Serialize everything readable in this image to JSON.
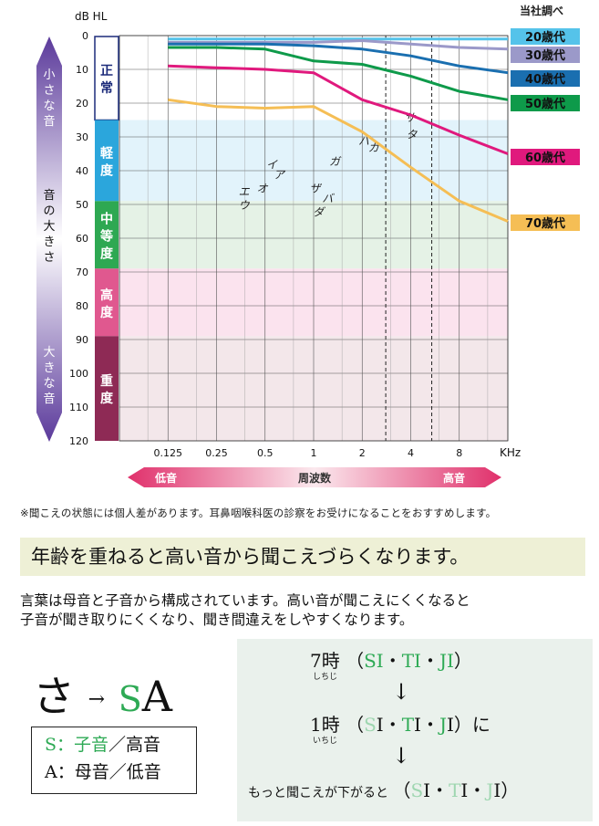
{
  "chart_data": {
    "type": "line",
    "title": "",
    "source_note": "当社調べ",
    "y_unit_label": "dB HL",
    "x_unit_label": "KHz",
    "x_ticks": [
      "0.125",
      "0.25",
      "0.5",
      "1",
      "2",
      "4",
      "8"
    ],
    "y_ticks": [
      "0",
      "10",
      "20",
      "30",
      "40",
      "50",
      "60",
      "70",
      "80",
      "90",
      "100",
      "110",
      "120"
    ],
    "ylim": [
      0,
      120
    ],
    "y_inverted": true,
    "x_scale": "log2",
    "grid": true,
    "series": [
      {
        "name": "20歳代",
        "color": "#55c3ea",
        "x": [
          0.125,
          0.25,
          0.5,
          1,
          2,
          4,
          8,
          16
        ],
        "y": [
          1,
          1,
          1,
          1,
          1,
          1,
          1,
          1
        ]
      },
      {
        "name": "30歳代",
        "color": "#9b99c9",
        "x": [
          0.125,
          0.25,
          0.5,
          1,
          2,
          4,
          8,
          16
        ],
        "y": [
          2,
          2,
          2,
          2,
          1.5,
          2.5,
          3.5,
          4
        ]
      },
      {
        "name": "40歳代",
        "color": "#1a6fb0",
        "x": [
          0.125,
          0.25,
          0.5,
          1,
          2,
          4,
          8,
          16
        ],
        "y": [
          2.5,
          2.5,
          2.5,
          3,
          4,
          6,
          9,
          11
        ]
      },
      {
        "name": "50歳代",
        "color": "#0e9a4a",
        "x": [
          0.125,
          0.25,
          0.5,
          1,
          2,
          4,
          8,
          16
        ],
        "y": [
          3.5,
          3.5,
          4,
          7.5,
          8.5,
          12,
          16.5,
          19
        ]
      },
      {
        "name": "60歳代",
        "color": "#e0197d",
        "x": [
          0.125,
          0.25,
          0.5,
          1,
          2,
          4,
          8,
          16
        ],
        "y": [
          9,
          9.5,
          10,
          11,
          19,
          23.5,
          29.5,
          35
        ]
      },
      {
        "name": "70歳代",
        "color": "#f5be55",
        "x": [
          0.125,
          0.25,
          0.5,
          1,
          2,
          4,
          8,
          16
        ],
        "y": [
          19,
          21,
          21.5,
          21,
          28.5,
          39,
          49,
          55
        ]
      }
    ],
    "bands": [
      {
        "name": "正常",
        "from": 0,
        "to": 25,
        "label_color": "#1b2a7a",
        "side_color": "#ffffff",
        "fill": "#ffffff"
      },
      {
        "name": "軽度",
        "from": 25,
        "to": 49,
        "label_color": "#ffffff",
        "side_color": "#2ba6dc",
        "fill": "#e2f3fb"
      },
      {
        "name": "中等度",
        "from": 49,
        "to": 69,
        "label_color": "#ffffff",
        "side_color": "#2ea852",
        "fill": "#e5f2e6"
      },
      {
        "name": "高度",
        "from": 69,
        "to": 89,
        "label_color": "#ffffff",
        "side_color": "#e0588f",
        "fill": "#fbe3ee"
      },
      {
        "name": "重度",
        "from": 89,
        "to": 120,
        "label_color": "#ffffff",
        "side_color": "#8e2a55",
        "fill": "#f3e7ea"
      }
    ],
    "speech_sounds": [
      {
        "text": "エ",
        "x": 0.37,
        "y": 46
      },
      {
        "text": "ウ",
        "x": 0.37,
        "y": 50
      },
      {
        "text": "オ",
        "x": 0.48,
        "y": 45
      },
      {
        "text": "イ",
        "x": 0.55,
        "y": 38
      },
      {
        "text": "ア",
        "x": 0.61,
        "y": 41
      },
      {
        "text": "ザ",
        "x": 1.02,
        "y": 45
      },
      {
        "text": "バ",
        "x": 1.22,
        "y": 48
      },
      {
        "text": "ダ",
        "x": 1.07,
        "y": 52
      },
      {
        "text": "ガ",
        "x": 1.35,
        "y": 37
      },
      {
        "text": "パ",
        "x": 2.05,
        "y": 31
      },
      {
        "text": "カ",
        "x": 2.35,
        "y": 33
      },
      {
        "text": "サ",
        "x": 3.95,
        "y": 24
      },
      {
        "text": "タ",
        "x": 4.05,
        "y": 29
      }
    ],
    "dashed_x": [
      2.8,
      5.4
    ],
    "left_scale": {
      "top": "小さな音",
      "middle": "音の大きさ",
      "bottom": "大きな音"
    },
    "freq_bar": {
      "low": "低音",
      "center": "周波数",
      "high": "高音"
    }
  },
  "note": "※聞こえの状態には個人差があります。耳鼻咽喉科医の診察をお受けになることをおすすめします。",
  "headline": "年齢を重ねると高い音から聞こえづらくなります。",
  "body": {
    "line1": "言葉は母音と子音から構成されています。高い音が聞こえにくくなると",
    "line2": "子音が聞き取りにくくなり、聞き間違えをしやすくなります。"
  },
  "example": {
    "kana": "さ",
    "arrow": "→",
    "s": "S",
    "a": "A",
    "legend_s_key": "S：",
    "legend_s_value": "子音",
    "legend_s_rest": "／高音",
    "legend_a": "A：母音／低音"
  },
  "panel": {
    "line1_time": "7時",
    "line1_ruby": "しちじ",
    "line2_time": "1時",
    "line2_ruby": "いちじ",
    "line2_suffix": "に",
    "line3_prefix": "もっと聞こえが下がると",
    "down_arrow": "↓",
    "open_paren": "（",
    "close_paren": "）",
    "dot": "・",
    "si_s": "S",
    "si_i": "I",
    "ti_t": "T",
    "ti_i": "I",
    "ji_j": "J",
    "ji_i": "I"
  }
}
